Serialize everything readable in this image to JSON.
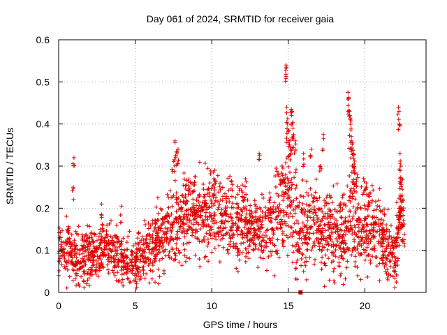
{
  "chart_data": {
    "type": "scatter",
    "title": "Day 061 of 2024, SRMTID for receiver gaia",
    "xlabel": "GPS time / hours",
    "ylabel": "SRMTID / TECUs",
    "xlim": [
      0,
      24
    ],
    "ylim": [
      0,
      0.6
    ],
    "x_ticks": [
      "0",
      "5",
      "10",
      "15",
      "20"
    ],
    "x_tick_values": [
      0,
      5,
      10,
      15,
      20
    ],
    "y_ticks": [
      "0",
      "0.1",
      "0.2",
      "0.3",
      "0.4",
      "0.5",
      "0.6"
    ],
    "y_tick_values": [
      0,
      0.1,
      0.2,
      0.3,
      0.4,
      0.5,
      0.6
    ],
    "grid": true,
    "marker": "plus",
    "color": "#e00000",
    "series": [
      {
        "name": "SRMTID",
        "trend": [
          [
            0.0,
            0.1
          ],
          [
            0.5,
            0.11
          ],
          [
            1.0,
            0.08
          ],
          [
            1.5,
            0.075
          ],
          [
            2.0,
            0.085
          ],
          [
            2.5,
            0.09
          ],
          [
            3.0,
            0.1
          ],
          [
            3.5,
            0.1
          ],
          [
            4.0,
            0.085
          ],
          [
            4.5,
            0.07
          ],
          [
            5.0,
            0.075
          ],
          [
            5.5,
            0.09
          ],
          [
            6.0,
            0.11
          ],
          [
            6.5,
            0.13
          ],
          [
            7.0,
            0.15
          ],
          [
            7.5,
            0.165
          ],
          [
            8.0,
            0.17
          ],
          [
            8.5,
            0.18
          ],
          [
            9.0,
            0.18
          ],
          [
            9.5,
            0.19
          ],
          [
            10.0,
            0.185
          ],
          [
            10.5,
            0.18
          ],
          [
            11.0,
            0.17
          ],
          [
            11.5,
            0.16
          ],
          [
            12.0,
            0.15
          ],
          [
            12.5,
            0.145
          ],
          [
            13.0,
            0.15
          ],
          [
            13.5,
            0.155
          ],
          [
            14.0,
            0.15
          ],
          [
            14.5,
            0.2
          ],
          [
            15.0,
            0.23
          ],
          [
            15.5,
            0.17
          ],
          [
            16.0,
            0.16
          ],
          [
            16.5,
            0.17
          ],
          [
            17.0,
            0.15
          ],
          [
            17.5,
            0.15
          ],
          [
            18.0,
            0.14
          ],
          [
            18.5,
            0.13
          ],
          [
            19.0,
            0.2
          ],
          [
            19.5,
            0.16
          ],
          [
            20.0,
            0.15
          ],
          [
            20.5,
            0.15
          ],
          [
            21.0,
            0.13
          ],
          [
            21.5,
            0.11
          ],
          [
            22.0,
            0.08
          ],
          [
            22.3,
            0.2
          ],
          [
            22.6,
            0.12
          ]
        ],
        "spread": [
          [
            0.0,
            0.035
          ],
          [
            2.0,
            0.03
          ],
          [
            4.5,
            0.03
          ],
          [
            6.5,
            0.04
          ],
          [
            8.0,
            0.05
          ],
          [
            10.0,
            0.05
          ],
          [
            12.0,
            0.045
          ],
          [
            14.0,
            0.04
          ],
          [
            15.0,
            0.07
          ],
          [
            16.0,
            0.05
          ],
          [
            18.0,
            0.05
          ],
          [
            19.0,
            0.07
          ],
          [
            20.5,
            0.045
          ],
          [
            22.0,
            0.04
          ],
          [
            22.6,
            0.03
          ]
        ],
        "spikes": [
          [
            1.0,
            0.32
          ],
          [
            0.95,
            0.25
          ],
          [
            2.8,
            0.21
          ],
          [
            4.1,
            0.205
          ],
          [
            7.6,
            0.36
          ],
          [
            7.7,
            0.335
          ],
          [
            7.8,
            0.34
          ],
          [
            7.55,
            0.315
          ],
          [
            8.9,
            0.275
          ],
          [
            10.2,
            0.29
          ],
          [
            11.3,
            0.265
          ],
          [
            12.0,
            0.255
          ],
          [
            12.2,
            0.27
          ],
          [
            13.1,
            0.33
          ],
          [
            14.2,
            0.295
          ],
          [
            14.6,
            0.3
          ],
          [
            14.85,
            0.54
          ],
          [
            14.88,
            0.535
          ],
          [
            14.9,
            0.44
          ],
          [
            14.95,
            0.4
          ],
          [
            15.05,
            0.385
          ],
          [
            15.1,
            0.36
          ],
          [
            15.15,
            0.345
          ],
          [
            15.2,
            0.435
          ],
          [
            15.25,
            0.43
          ],
          [
            15.3,
            0.39
          ],
          [
            15.35,
            0.375
          ],
          [
            15.45,
            0.36
          ],
          [
            16.0,
            0.33
          ],
          [
            16.5,
            0.34
          ],
          [
            17.1,
            0.3
          ],
          [
            17.3,
            0.375
          ],
          [
            18.9,
            0.475
          ],
          [
            18.95,
            0.46
          ],
          [
            19.0,
            0.43
          ],
          [
            19.05,
            0.41
          ],
          [
            19.1,
            0.39
          ],
          [
            19.12,
            0.37
          ],
          [
            19.2,
            0.355
          ],
          [
            19.25,
            0.33
          ],
          [
            19.3,
            0.305
          ],
          [
            19.5,
            0.28
          ],
          [
            20.1,
            0.25
          ],
          [
            22.2,
            0.44
          ],
          [
            22.25,
            0.4
          ],
          [
            22.3,
            0.33
          ],
          [
            22.35,
            0.3
          ],
          [
            22.4,
            0.27
          ],
          [
            22.45,
            0.245
          ],
          [
            22.5,
            0.22
          ]
        ],
        "lows": [
          [
            1.3,
            0.02
          ],
          [
            1.35,
            0.015
          ],
          [
            4.7,
            0.025
          ],
          [
            5.3,
            0.03
          ],
          [
            16.0,
            0.05
          ],
          [
            16.2,
            0.03
          ],
          [
            18.4,
            0.04
          ],
          [
            21.5,
            0.03
          ],
          [
            21.7,
            0.04
          ],
          [
            22.0,
            0.05
          ]
        ],
        "square_marker": [
          [
            15.8,
            0.0
          ]
        ]
      }
    ]
  }
}
